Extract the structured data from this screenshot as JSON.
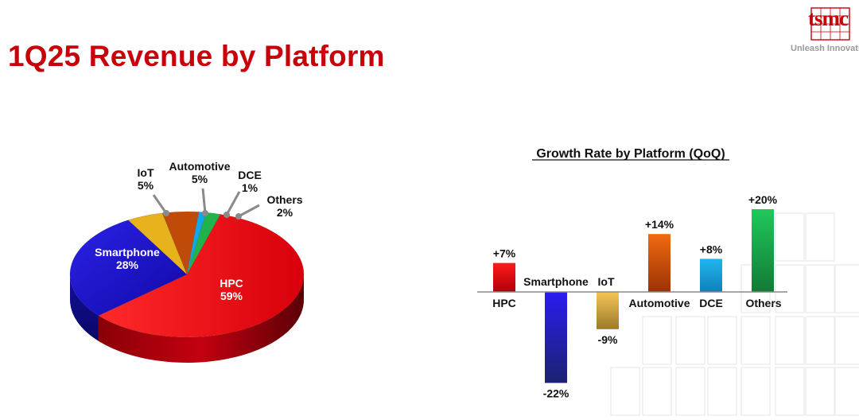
{
  "page": {
    "title": "1Q25 Revenue by Platform",
    "brand": "tsmc",
    "tagline": "Unleash Innovation"
  },
  "colors": {
    "title": "#c8000a",
    "hpc": "#e8000e",
    "smartphone": "#1d14d0",
    "iot": "#e8b21c",
    "automotive": "#c04a08",
    "dce": "#12a7e6",
    "others": "#22b24c"
  },
  "chart_data": [
    {
      "type": "pie",
      "categories": [
        "HPC",
        "Smartphone",
        "IoT",
        "Automotive",
        "DCE",
        "Others"
      ],
      "values": [
        59,
        28,
        5,
        5,
        1,
        2
      ],
      "labels": [
        "59%",
        "28%",
        "5%",
        "5%",
        "1%",
        "2%"
      ]
    },
    {
      "type": "bar",
      "title": "Growth Rate by Platform (QoQ)",
      "categories": [
        "HPC",
        "Smartphone",
        "IoT",
        "Automotive",
        "DCE",
        "Others"
      ],
      "values": [
        7,
        -22,
        -9,
        14,
        8,
        20
      ],
      "labels": [
        "+7%",
        "-22%",
        "-9%",
        "+14%",
        "+8%",
        "+20%"
      ]
    }
  ]
}
